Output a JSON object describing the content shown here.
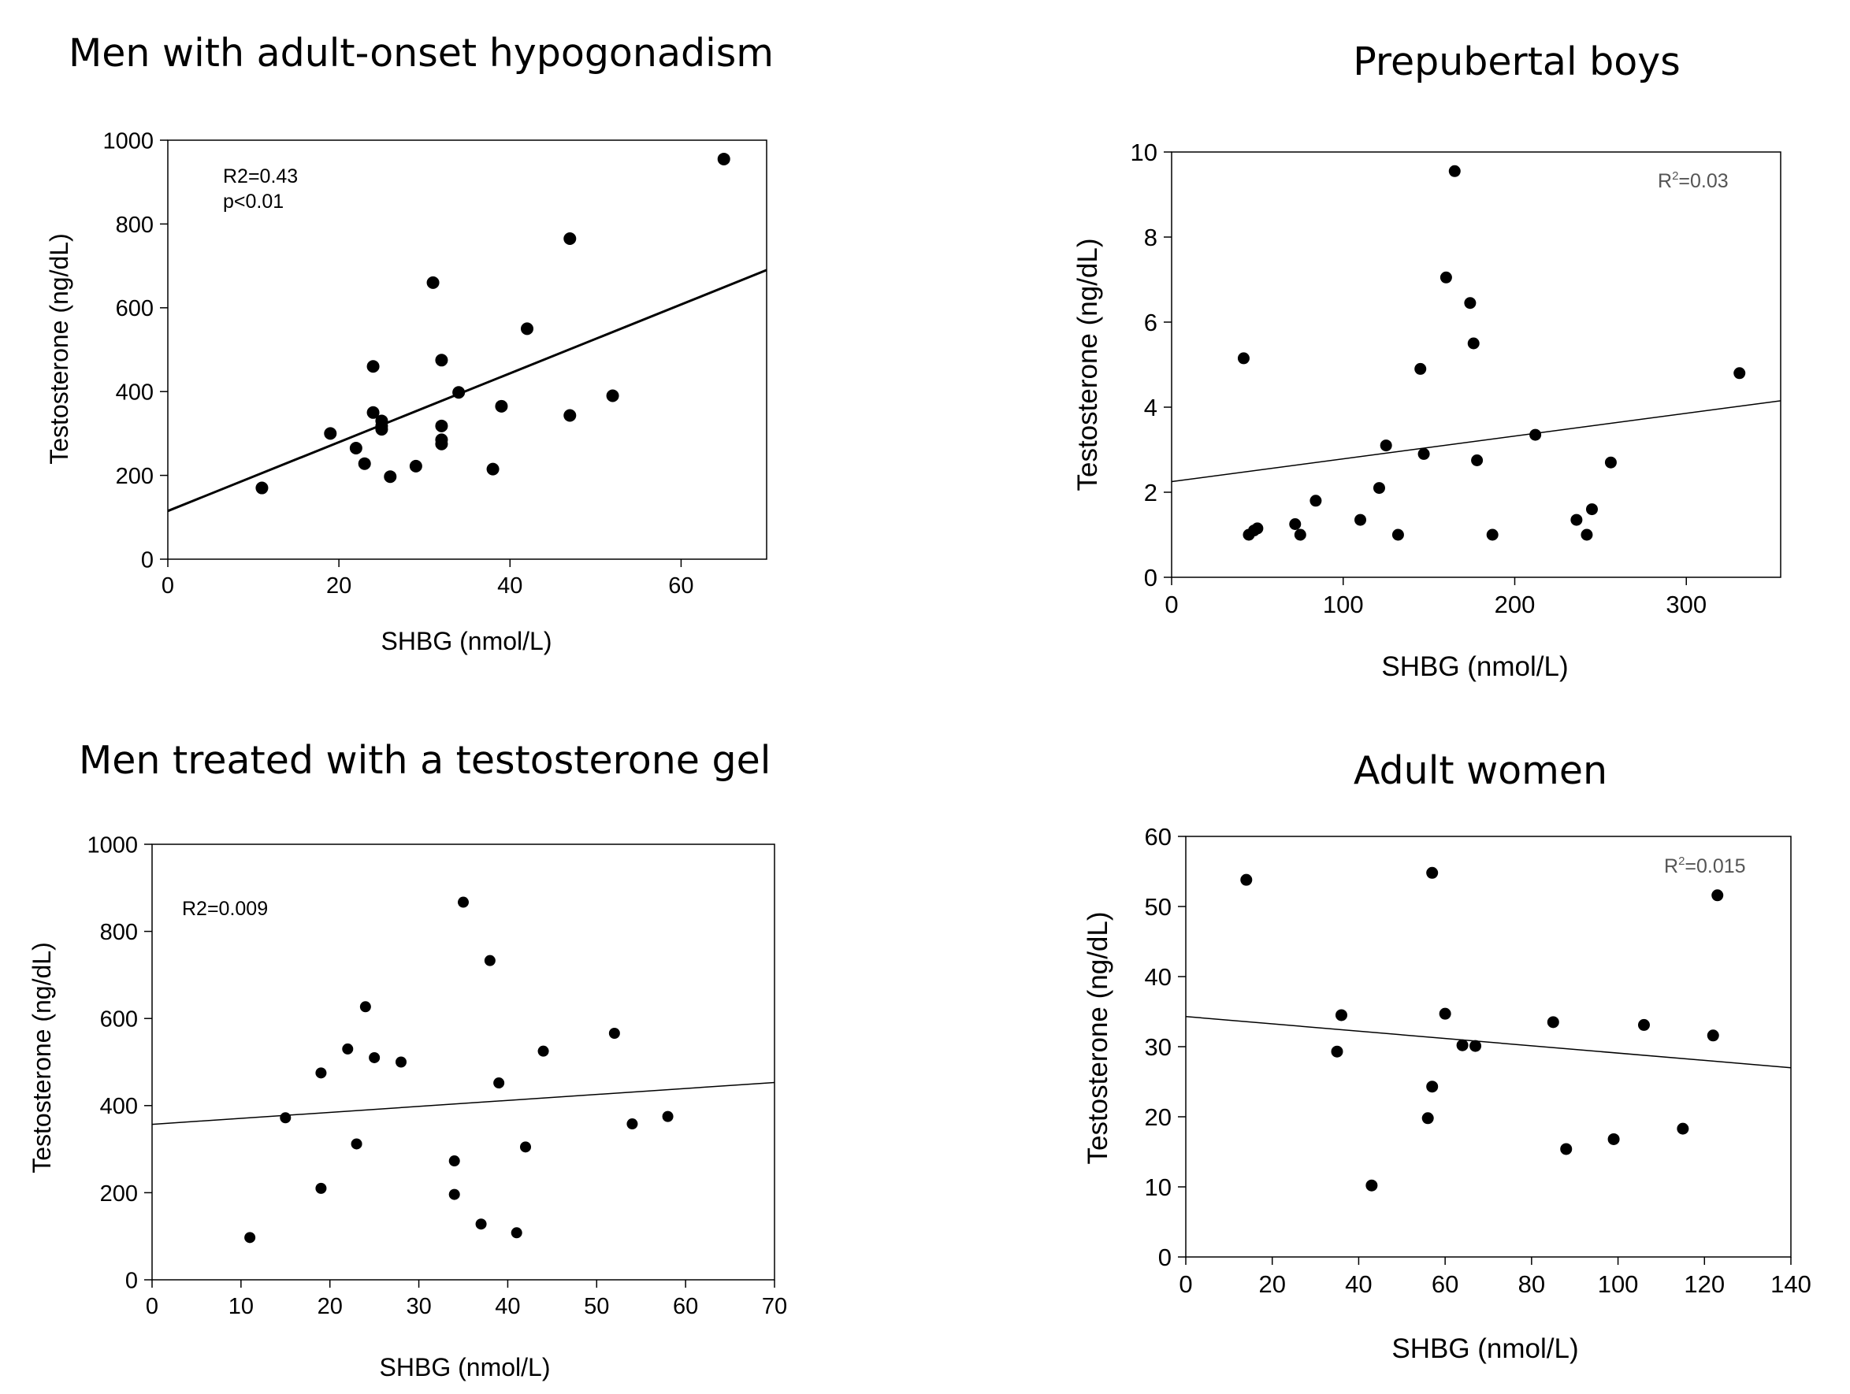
{
  "chart_data": [
    {
      "type": "scatter",
      "title": "Men with adult-onset hypogonadism",
      "xlabel": "SHBG (nmol/L)",
      "ylabel": "Testosterone (ng/dL)",
      "xlim": [
        0,
        70
      ],
      "ylim": [
        0,
        1000
      ],
      "xticks": [
        0,
        20,
        40,
        60
      ],
      "yticks": [
        0,
        200,
        400,
        600,
        800,
        1000
      ],
      "annotations": [
        "R2=0.43",
        "p<0.01"
      ],
      "trendline": {
        "x": [
          0,
          70
        ],
        "y": [
          115,
          690
        ]
      },
      "points": [
        [
          11,
          170
        ],
        [
          19,
          300
        ],
        [
          22,
          265
        ],
        [
          23,
          228
        ],
        [
          24,
          460
        ],
        [
          24,
          350
        ],
        [
          25,
          330
        ],
        [
          25,
          318
        ],
        [
          25,
          310
        ],
        [
          26,
          197
        ],
        [
          29,
          222
        ],
        [
          31,
          660
        ],
        [
          32,
          475
        ],
        [
          32,
          318
        ],
        [
          32,
          285
        ],
        [
          32,
          275
        ],
        [
          34,
          398
        ],
        [
          38,
          215
        ],
        [
          39,
          365
        ],
        [
          42,
          550
        ],
        [
          47,
          765
        ],
        [
          47,
          343
        ],
        [
          52,
          390
        ],
        [
          65,
          955
        ]
      ],
      "axis_font": 29,
      "label_font": 32
    },
    {
      "type": "scatter",
      "title": "Prepubertal boys",
      "xlabel": "SHBG (nmol/L)",
      "ylabel": "Testosterone (ng/dL)",
      "xlim": [
        0,
        355
      ],
      "ylim": [
        0,
        10
      ],
      "xticks": [
        0,
        100,
        200,
        300
      ],
      "yticks": [
        0,
        2,
        4,
        6,
        8,
        10
      ],
      "annotations": [
        "R",
        "2",
        "=0.03"
      ],
      "trendline": {
        "x": [
          0,
          355
        ],
        "y": [
          2.25,
          4.15
        ]
      },
      "points": [
        [
          42,
          5.15
        ],
        [
          45,
          1.0
        ],
        [
          48,
          1.1
        ],
        [
          50,
          1.15
        ],
        [
          72,
          1.25
        ],
        [
          75,
          1.0
        ],
        [
          84,
          1.8
        ],
        [
          110,
          1.35
        ],
        [
          121,
          2.1
        ],
        [
          125,
          3.1
        ],
        [
          132,
          1.0
        ],
        [
          145,
          4.9
        ],
        [
          147,
          2.9
        ],
        [
          160,
          7.05
        ],
        [
          165,
          9.55
        ],
        [
          174,
          6.45
        ],
        [
          176,
          5.5
        ],
        [
          178,
          2.75
        ],
        [
          187,
          1.0
        ],
        [
          212,
          3.35
        ],
        [
          236,
          1.35
        ],
        [
          242,
          1.0
        ],
        [
          245,
          1.6
        ],
        [
          256,
          2.7
        ],
        [
          331,
          4.8
        ]
      ],
      "axis_font": 31,
      "label_font": 35
    },
    {
      "type": "scatter",
      "title": "Men treated with a testosterone gel",
      "xlabel": "SHBG (nmol/L)",
      "ylabel": "Testosterone (ng/dL)",
      "xlim": [
        0,
        70
      ],
      "ylim": [
        0,
        1000
      ],
      "xticks": [
        0,
        10,
        20,
        30,
        40,
        50,
        60,
        70
      ],
      "yticks": [
        0,
        200,
        400,
        600,
        800,
        1000
      ],
      "annotations": [
        "R2=0.009"
      ],
      "trendline": {
        "x": [
          0,
          70
        ],
        "y": [
          357,
          453
        ]
      },
      "points": [
        [
          11,
          97
        ],
        [
          15,
          372
        ],
        [
          19,
          475
        ],
        [
          19,
          210
        ],
        [
          22,
          530
        ],
        [
          23,
          312
        ],
        [
          24,
          627
        ],
        [
          25,
          510
        ],
        [
          28,
          500
        ],
        [
          34,
          273
        ],
        [
          34,
          196
        ],
        [
          35,
          867
        ],
        [
          37,
          128
        ],
        [
          38,
          733
        ],
        [
          39,
          452
        ],
        [
          41,
          108
        ],
        [
          42,
          305
        ],
        [
          44,
          525
        ],
        [
          52,
          566
        ],
        [
          54,
          358
        ],
        [
          58,
          375
        ]
      ],
      "axis_font": 29,
      "label_font": 32
    },
    {
      "type": "scatter",
      "title": "Adult women",
      "xlabel": "SHBG (nmol/L)",
      "ylabel": "Testosterone (ng/dL)",
      "xlim": [
        0,
        140
      ],
      "ylim": [
        0,
        60
      ],
      "xticks": [
        0,
        20,
        40,
        60,
        80,
        100,
        120,
        140
      ],
      "yticks": [
        0,
        10,
        20,
        30,
        40,
        50,
        60
      ],
      "annotations": [
        "R",
        "2",
        "=0.015"
      ],
      "trendline": {
        "x": [
          0,
          140
        ],
        "y": [
          34.3,
          27.0
        ]
      },
      "points": [
        [
          14,
          53.8
        ],
        [
          35,
          29.3
        ],
        [
          36,
          34.5
        ],
        [
          43,
          10.2
        ],
        [
          56,
          19.8
        ],
        [
          57,
          24.3
        ],
        [
          57,
          54.8
        ],
        [
          60,
          34.7
        ],
        [
          64,
          30.2
        ],
        [
          67,
          30.1
        ],
        [
          85,
          33.5
        ],
        [
          88,
          15.4
        ],
        [
          99,
          16.8
        ],
        [
          106,
          33.1
        ],
        [
          115,
          18.3
        ],
        [
          122,
          31.6
        ],
        [
          123,
          51.6
        ]
      ],
      "axis_font": 31,
      "label_font": 35
    }
  ]
}
